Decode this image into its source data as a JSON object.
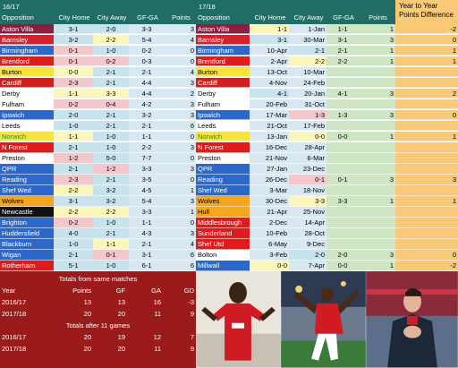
{
  "colors": {
    "header_bg": "#1f6d65",
    "cyan": "#c7e3ee",
    "lightblue": "#d7e8f3",
    "pink": "#f4c7cd",
    "yellow": "#fbf6b9",
    "orange": "#f9c978",
    "darkred": "#9b1b1b",
    "green": "#cfe6c2"
  },
  "left": {
    "season": "16/17",
    "headers": [
      "Opposition",
      "City Home",
      "City Away",
      "GF-GA",
      "Points"
    ],
    "rows": [
      {
        "team": "Aston Villa",
        "bg": "#8b1f3f",
        "fg": "#ffffff",
        "home": "3-1",
        "away": "2-0",
        "gfga": "3-3",
        "pts": "3"
      },
      {
        "team": "Barnsley",
        "bg": "#d61f2a",
        "fg": "#ffffff",
        "home": "3-2",
        "away": "2-2",
        "gfga": "5-4",
        "pts": "4"
      },
      {
        "team": "Birmingham",
        "bg": "#2c68c9",
        "fg": "#ffffff",
        "home": "0-1",
        "away": "1-0",
        "gfga": "0-2",
        "pts": "0"
      },
      {
        "team": "Brentford",
        "bg": "#e01b1b",
        "fg": "#ffffff",
        "home": "0-1",
        "away": "0-2",
        "gfga": "0-3",
        "pts": "0"
      },
      {
        "team": "Burton",
        "bg": "#f6e43a",
        "fg": "#000000",
        "home": "0-0",
        "away": "2-1",
        "gfga": "2-1",
        "pts": "4"
      },
      {
        "team": "Cardiff",
        "bg": "#d21e1e",
        "fg": "#ffffff",
        "home": "2-3",
        "away": "2-1",
        "gfga": "4-4",
        "pts": "3"
      },
      {
        "team": "Derby",
        "bg": "#ffffff",
        "fg": "#000000",
        "home": "1-1",
        "away": "3-3",
        "gfga": "4-4",
        "pts": "2"
      },
      {
        "team": "Fulham",
        "bg": "#ffffff",
        "fg": "#000000",
        "home": "0-2",
        "away": "0-4",
        "gfga": "4-2",
        "pts": "3"
      },
      {
        "team": "Ipswich",
        "bg": "#2c68c9",
        "fg": "#ffffff",
        "home": "2-0",
        "away": "2-1",
        "gfga": "3-2",
        "pts": "3"
      },
      {
        "team": "Leeds",
        "bg": "#ffffff",
        "fg": "#000000",
        "home": "1-0",
        "away": "2-1",
        "gfga": "2-1",
        "pts": "6"
      },
      {
        "team": "Norwich",
        "bg": "#f6e43a",
        "fg": "#2e8b3a",
        "home": "1-1",
        "away": "1-0",
        "gfga": "1-1",
        "pts": "0"
      },
      {
        "team": "N Forest",
        "bg": "#e01b1b",
        "fg": "#ffffff",
        "home": "2-1",
        "away": "1-0",
        "gfga": "2-2",
        "pts": "3"
      },
      {
        "team": "Preston",
        "bg": "#ffffff",
        "fg": "#000000",
        "home": "1-2",
        "away": "5-0",
        "gfga": "7-7",
        "pts": "0"
      },
      {
        "team": "QPR",
        "bg": "#2c68c9",
        "fg": "#ffffff",
        "home": "2-1",
        "away": "1-2",
        "gfga": "3-3",
        "pts": "3"
      },
      {
        "team": "Reading",
        "bg": "#2c68c9",
        "fg": "#ffffff",
        "home": "2-3",
        "away": "2-1",
        "gfga": "3-5",
        "pts": "0"
      },
      {
        "team": "Shef Wed",
        "bg": "#2c68c9",
        "fg": "#ffffff",
        "home": "2-2",
        "away": "3-2",
        "gfga": "4-5",
        "pts": "1"
      },
      {
        "team": "Wolves",
        "bg": "#f6a51f",
        "fg": "#000000",
        "home": "3-1",
        "away": "3-2",
        "gfga": "5-4",
        "pts": "3"
      },
      {
        "team": "Newcastle",
        "bg": "#111111",
        "fg": "#ffffff",
        "home": "2-2",
        "away": "2-2",
        "gfga": "3-3",
        "pts": "1"
      },
      {
        "team": "Brighton",
        "bg": "#2c68c9",
        "fg": "#ffffff",
        "home": "0-2",
        "away": "1-0",
        "gfga": "1-1",
        "pts": "0"
      },
      {
        "team": "Huddersfield",
        "bg": "#2c68c9",
        "fg": "#ffffff",
        "home": "4-0",
        "away": "2-1",
        "gfga": "4-3",
        "pts": "3"
      },
      {
        "team": "Blackburn",
        "bg": "#2c68c9",
        "fg": "#ffffff",
        "home": "1-0",
        "away": "1-1",
        "gfga": "2-1",
        "pts": "4"
      },
      {
        "team": "Wigan",
        "bg": "#2c68c9",
        "fg": "#ffffff",
        "home": "2-1",
        "away": "0-1",
        "gfga": "3-1",
        "pts": "6"
      },
      {
        "team": "Rotherham",
        "bg": "#e01b1b",
        "fg": "#ffffff",
        "home": "5-1",
        "away": "1-0",
        "gfga": "6-1",
        "pts": "6"
      }
    ]
  },
  "right": {
    "season": "17/18",
    "headers": [
      "Opposition",
      "City Home",
      "City Away",
      "GF-GA",
      "Points"
    ],
    "diff_header": "Year to Year Points Difference",
    "rows": [
      {
        "team": "Aston Villa",
        "bg": "#8b1f3f",
        "fg": "#ffffff",
        "home": "1-1",
        "away": "1-Jan",
        "gfga": "1-1",
        "pts": "1",
        "diff": "-2"
      },
      {
        "team": "Barnsley",
        "bg": "#d61f2a",
        "fg": "#ffffff",
        "home": "3-1",
        "away": "30-Mar",
        "gfga": "3-1",
        "pts": "3",
        "diff": "0"
      },
      {
        "team": "Birmingham",
        "bg": "#2c68c9",
        "fg": "#ffffff",
        "home": "10-Apr",
        "away": "2-1",
        "gfga": "2-1",
        "pts": "1",
        "diff": "1"
      },
      {
        "team": "Brentford",
        "bg": "#e01b1b",
        "fg": "#ffffff",
        "home": "2-Apr",
        "away": "2-2",
        "gfga": "2-2",
        "pts": "1",
        "diff": "1"
      },
      {
        "team": "Burton",
        "bg": "#f6e43a",
        "fg": "#000000",
        "home": "13-Oct",
        "away": "10-Mar",
        "gfga": "",
        "pts": "",
        "diff": ""
      },
      {
        "team": "Cardiff",
        "bg": "#d21e1e",
        "fg": "#ffffff",
        "home": "4-Nov",
        "away": "24-Feb",
        "gfga": "",
        "pts": "",
        "diff": ""
      },
      {
        "team": "Derby",
        "bg": "#ffffff",
        "fg": "#000000",
        "home": "4-1",
        "away": "20-Jan",
        "gfga": "4-1",
        "pts": "3",
        "diff": "2"
      },
      {
        "team": "Fulham",
        "bg": "#ffffff",
        "fg": "#000000",
        "home": "20-Feb",
        "away": "31-Oct",
        "gfga": "",
        "pts": "",
        "diff": ""
      },
      {
        "team": "Ipswich",
        "bg": "#2c68c9",
        "fg": "#ffffff",
        "home": "17-Mar",
        "away": "1-3",
        "gfga": "1-3",
        "pts": "3",
        "diff": "0"
      },
      {
        "team": "Leeds",
        "bg": "#ffffff",
        "fg": "#000000",
        "home": "21-Oct",
        "away": "17-Feb",
        "gfga": "",
        "pts": "",
        "diff": ""
      },
      {
        "team": "Norwich",
        "bg": "#f6e43a",
        "fg": "#2e8b3a",
        "home": "13-Jan",
        "away": "0-0",
        "gfga": "0-0",
        "pts": "1",
        "diff": "1"
      },
      {
        "team": "N Forest",
        "bg": "#e01b1b",
        "fg": "#ffffff",
        "home": "16-Dec",
        "away": "28-Apr",
        "gfga": "",
        "pts": "",
        "diff": ""
      },
      {
        "team": "Preston",
        "bg": "#ffffff",
        "fg": "#000000",
        "home": "21-Nov",
        "away": "6-Mar",
        "gfga": "",
        "pts": "",
        "diff": ""
      },
      {
        "team": "QPR",
        "bg": "#2c68c9",
        "fg": "#ffffff",
        "home": "27-Jan",
        "away": "23-Dec",
        "gfga": "",
        "pts": "",
        "diff": ""
      },
      {
        "team": "Reading",
        "bg": "#2c68c9",
        "fg": "#ffffff",
        "home": "26-Dec",
        "away": "0-1",
        "gfga": "0-1",
        "pts": "3",
        "diff": "3"
      },
      {
        "team": "Shef Wed",
        "bg": "#2c68c9",
        "fg": "#ffffff",
        "home": "3-Mar",
        "away": "18-Nov",
        "gfga": "",
        "pts": "",
        "diff": ""
      },
      {
        "team": "Wolves",
        "bg": "#f6a51f",
        "fg": "#000000",
        "home": "30-Dec",
        "away": "3-3",
        "gfga": "3-3",
        "pts": "1",
        "diff": "1"
      },
      {
        "team": "Hull",
        "bg": "#f6a51f",
        "fg": "#000000",
        "home": "21-Apr",
        "away": "25-Nov",
        "gfga": "",
        "pts": "",
        "diff": ""
      },
      {
        "team": "Middlesbrough",
        "bg": "#e01b1b",
        "fg": "#ffffff",
        "home": "2-Dec",
        "away": "14-Apr",
        "gfga": "",
        "pts": "",
        "diff": ""
      },
      {
        "team": "Sunderland",
        "bg": "#e01b1b",
        "fg": "#ffffff",
        "home": "10-Feb",
        "away": "28-Oct",
        "gfga": "",
        "pts": "",
        "diff": ""
      },
      {
        "team": "Shef Utd",
        "bg": "#e01b1b",
        "fg": "#ffffff",
        "home": "6-May",
        "away": "9-Dec",
        "gfga": "",
        "pts": "",
        "diff": ""
      },
      {
        "team": "Bolton",
        "bg": "#ffffff",
        "fg": "#000000",
        "home": "3-Feb",
        "away": "2-0",
        "gfga": "2-0",
        "pts": "3",
        "diff": "0"
      },
      {
        "team": "Millwall",
        "bg": "#2c68c9",
        "fg": "#ffffff",
        "home": "0-0",
        "away": "7-Apr",
        "gfga": "0-0",
        "pts": "1",
        "diff": "-2"
      }
    ]
  },
  "totals": {
    "same_title": "Totals from same matches",
    "after_title": "Totals after 11 games",
    "headers": [
      "Year",
      "Points",
      "GF",
      "GA",
      "GD"
    ],
    "same": [
      {
        "year": "2016/17",
        "points": "13",
        "gf": "13",
        "ga": "16",
        "gd": "-3"
      },
      {
        "year": "2017/18",
        "points": "20",
        "gf": "20",
        "ga": "11",
        "gd": "9"
      }
    ],
    "after": [
      {
        "year": "2016/17",
        "points": "20",
        "gf": "19",
        "ga": "12",
        "gd": "7"
      },
      {
        "year": "2017/18",
        "points": "20",
        "gf": "20",
        "ga": "11",
        "gd": "9"
      }
    ]
  },
  "photos": [
    "player-celebrating-photo",
    "player-jumping-photo",
    "manager-clapping-photo"
  ]
}
